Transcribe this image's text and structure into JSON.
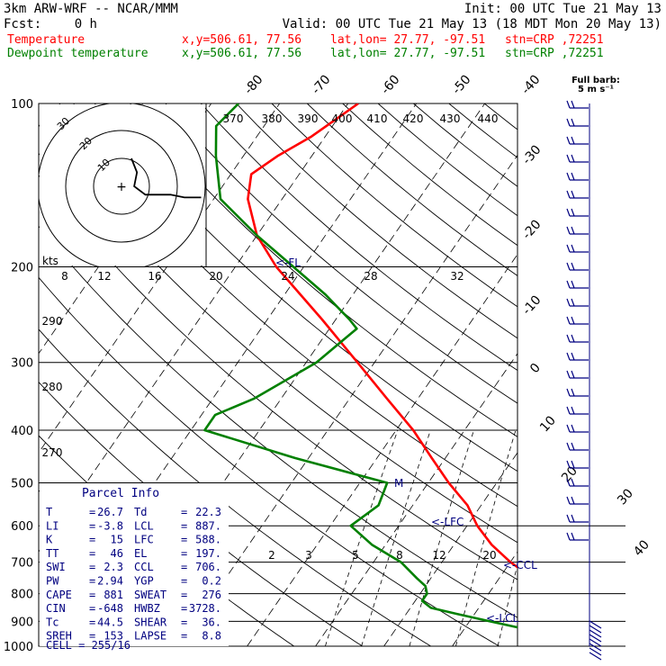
{
  "header": {
    "model": "3km ARW-WRF -- NCAR/MMM",
    "init": "Init: 00 UTC Tue 21 May 13",
    "fcst_label": "Fcst:",
    "fcst_value": "0 h",
    "valid": "Valid: 00 UTC Tue 21 May 13 (18 MDT Mon 20 May 13)",
    "temp_line": {
      "label": "Temperature",
      "xy": "x,y=506.61, 77.56",
      "latlon": "lat,lon= 27.77, -97.51",
      "stn": "stn=CRP ,72251",
      "color": "#ff0000"
    },
    "dew_line": {
      "label": "Dewpoint temperature",
      "xy": "x,y=506.61, 77.56",
      "latlon": "lat,lon= 27.77, -97.51",
      "stn": "stn=CRP ,72251",
      "color": "#008000"
    }
  },
  "wind_key": {
    "title": "Full barb:",
    "value": "5 m s⁻¹"
  },
  "hodograph": {
    "units": "kts",
    "ring_labels": [
      "10",
      "20",
      "30"
    ]
  },
  "theta_labels": [
    "370",
    "380",
    "390",
    "400",
    "410",
    "420",
    "430",
    "440"
  ],
  "mixing_ratio_top_labels": [
    "8",
    "12",
    "16",
    "20",
    "24",
    "28",
    "32"
  ],
  "mixing_ratio_bottom_labels": [
    "2",
    "3",
    "5",
    "8",
    "12",
    "20"
  ],
  "theta_e_labels": [
    "290",
    "280",
    "270"
  ],
  "fl_marker": "<-FL",
  "level_markers": [
    "M",
    "<-LFC",
    "<-CCL",
    "<-LCL"
  ],
  "parcel_info": {
    "title": "Parcel Info",
    "rows": [
      [
        "T",
        "26.7",
        "Td",
        "22.3"
      ],
      [
        "LI",
        "-3.8",
        "LCL",
        "887."
      ],
      [
        "K",
        "15",
        "LFC",
        "588."
      ],
      [
        "TT",
        "46",
        "EL",
        "197."
      ],
      [
        "SWI",
        "2.3",
        "CCL",
        "706."
      ],
      [
        "PW",
        "2.94",
        "YGP",
        "0.2"
      ],
      [
        "CAPE",
        "881",
        "SWEAT",
        "276"
      ],
      [
        "CIN",
        "-648",
        "HWBZ",
        "3728."
      ],
      [
        "Tc",
        "44.5",
        "SHEAR",
        "36."
      ],
      [
        "SREH",
        "153",
        "LAPSE",
        "8.8"
      ]
    ],
    "cell": "CELL = 255/16"
  },
  "chart_data": {
    "type": "line",
    "title": "",
    "xlabel": "",
    "ylabel": "",
    "y_scale": "log",
    "y_pressure_hpa_range": [
      1000,
      100
    ],
    "pressure_ticks": [
      100,
      200,
      300,
      400,
      500,
      600,
      700,
      800,
      900,
      1000
    ],
    "temperature_ticks_c": [
      -80,
      -70,
      -60,
      -50,
      -40,
      -30,
      -20,
      -10,
      0,
      10,
      20,
      30,
      40
    ],
    "series": [
      {
        "name": "Temperature",
        "color": "#ff0000",
        "points": [
          {
            "p": 1000,
            "t": 26.7
          },
          {
            "p": 975,
            "t": 25
          },
          {
            "p": 950,
            "t": 24
          },
          {
            "p": 925,
            "t": 24
          },
          {
            "p": 900,
            "t": 24
          },
          {
            "p": 875,
            "t": 24.5
          },
          {
            "p": 850,
            "t": 24.5
          },
          {
            "p": 825,
            "t": 23.5
          },
          {
            "p": 800,
            "t": 21
          },
          {
            "p": 775,
            "t": 18
          },
          {
            "p": 750,
            "t": 15
          },
          {
            "p": 700,
            "t": 10
          },
          {
            "p": 650,
            "t": 5.5
          },
          {
            "p": 600,
            "t": 1.5
          },
          {
            "p": 550,
            "t": -2
          },
          {
            "p": 500,
            "t": -7
          },
          {
            "p": 450,
            "t": -12
          },
          {
            "p": 400,
            "t": -17.5
          },
          {
            "p": 350,
            "t": -24.5
          },
          {
            "p": 300,
            "t": -32.5
          },
          {
            "p": 250,
            "t": -42
          },
          {
            "p": 200,
            "t": -54
          },
          {
            "p": 175,
            "t": -60
          },
          {
            "p": 150,
            "t": -65
          },
          {
            "p": 135,
            "t": -67
          },
          {
            "p": 125,
            "t": -65
          },
          {
            "p": 115,
            "t": -62
          },
          {
            "p": 100,
            "t": -58.5
          }
        ]
      },
      {
        "name": "Dewpoint temperature",
        "color": "#008000",
        "points": [
          {
            "p": 1000,
            "t": 22.3
          },
          {
            "p": 975,
            "t": 21.5
          },
          {
            "p": 950,
            "t": 20.5
          },
          {
            "p": 925,
            "t": 18
          },
          {
            "p": 900,
            "t": 13
          },
          {
            "p": 875,
            "t": 8
          },
          {
            "p": 850,
            "t": 3
          },
          {
            "p": 825,
            "t": 1
          },
          {
            "p": 800,
            "t": 1
          },
          {
            "p": 775,
            "t": 0
          },
          {
            "p": 750,
            "t": -2
          },
          {
            "p": 700,
            "t": -6
          },
          {
            "p": 650,
            "t": -12
          },
          {
            "p": 600,
            "t": -17
          },
          {
            "p": 550,
            "t": -15
          },
          {
            "p": 500,
            "t": -16
          },
          {
            "p": 450,
            "t": -32
          },
          {
            "p": 400,
            "t": -48
          },
          {
            "p": 375,
            "t": -48
          },
          {
            "p": 350,
            "t": -44
          },
          {
            "p": 300,
            "t": -38.5
          },
          {
            "p": 260,
            "t": -36
          },
          {
            "p": 250,
            "t": -38
          },
          {
            "p": 225,
            "t": -44
          },
          {
            "p": 200,
            "t": -51.5
          },
          {
            "p": 175,
            "t": -60
          },
          {
            "p": 150,
            "t": -69
          },
          {
            "p": 125,
            "t": -74
          },
          {
            "p": 110,
            "t": -77
          },
          {
            "p": 100,
            "t": -76
          }
        ]
      }
    ],
    "hodograph_points": [
      {
        "u": 10,
        "v": 10
      },
      {
        "u": 12,
        "v": 5
      },
      {
        "u": 11,
        "v": 0
      },
      {
        "u": 15,
        "v": -3
      },
      {
        "u": 24,
        "v": -3
      },
      {
        "u": 29,
        "v": -4
      },
      {
        "u": 35,
        "v": -4
      }
    ]
  }
}
